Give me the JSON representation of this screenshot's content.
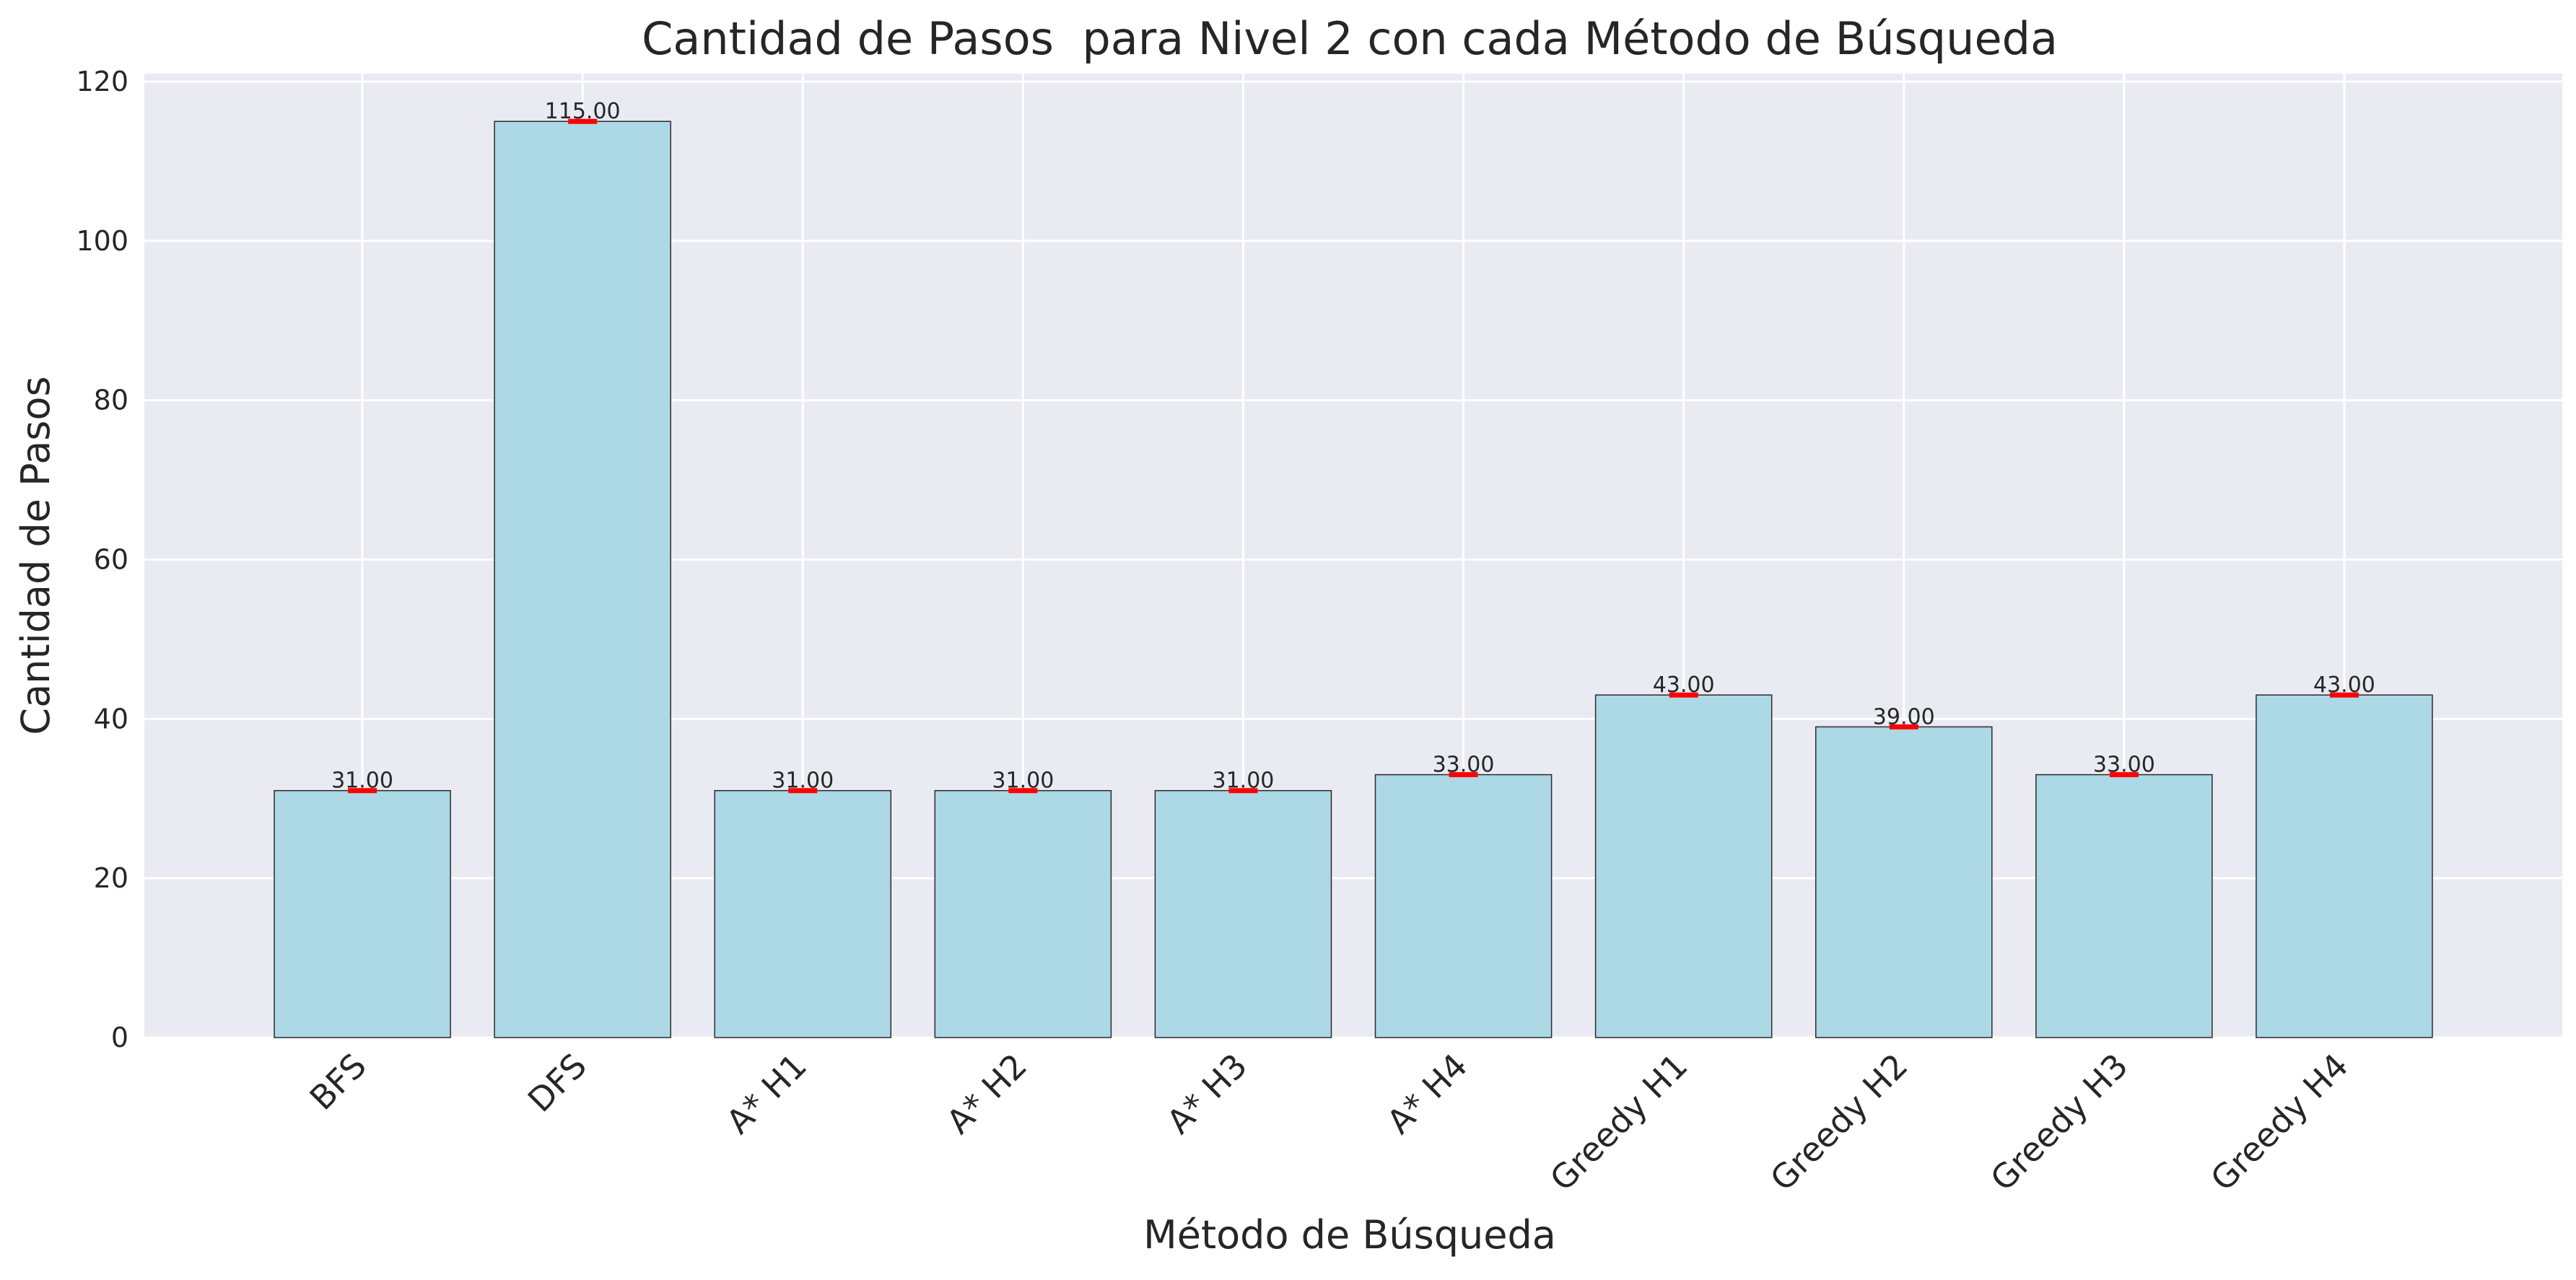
{
  "chart_data": {
    "type": "bar",
    "title": "Cantidad de Pasos  para Nivel 2 con cada Método de Búsqueda",
    "xlabel": "Método de Búsqueda",
    "ylabel": "Cantidad de Pasos",
    "categories": [
      "BFS",
      "DFS",
      "A* H1",
      "A* H2",
      "A* H3",
      "A* H4",
      "Greedy H1",
      "Greedy H2",
      "Greedy H3",
      "Greedy H4"
    ],
    "values": [
      31,
      115,
      31,
      31,
      31,
      33,
      43,
      39,
      33,
      43
    ],
    "value_labels": [
      "31.00",
      "115.00",
      "31.00",
      "31.00",
      "31.00",
      "33.00",
      "43.00",
      "39.00",
      "33.00",
      "43.00"
    ],
    "ylim": [
      0,
      121
    ],
    "yticks": [
      0,
      20,
      40,
      60,
      80,
      100,
      120
    ],
    "grid": true,
    "legend": "none",
    "colors": {
      "bar_fill": "#add8e6",
      "bar_edge": "#2b2b2b",
      "marker": "#ff0000",
      "plot_background": "#eaeaf2",
      "grid": "#ffffff"
    }
  }
}
